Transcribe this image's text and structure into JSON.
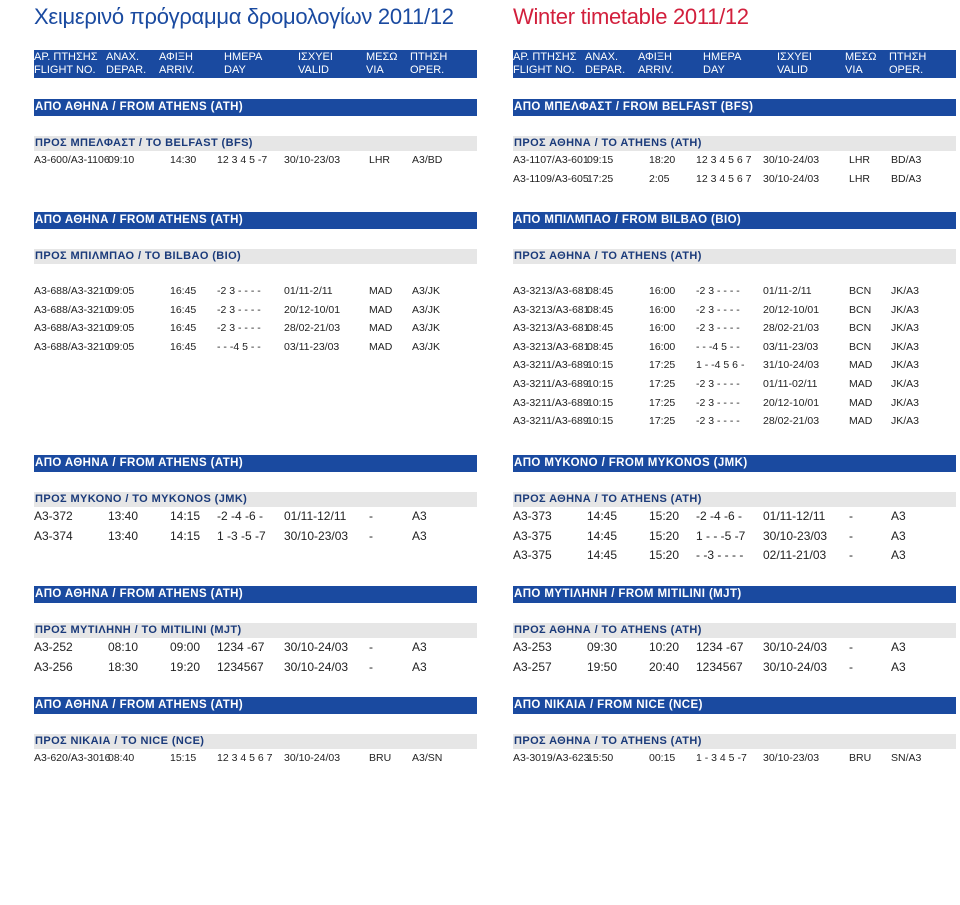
{
  "titles": {
    "greek": "Χειμερινό πρόγραμμα δρομολογίων 2011/12",
    "english": "Winter timetable 2011/12"
  },
  "column_headers": {
    "greek": [
      "ΑΡ. ΠΤΗΣΗΣ",
      "ΑΝΑΧ.",
      "ΑΦΙΞΗ",
      "ΗΜΕΡΑ",
      "ΙΣΧΥΕΙ",
      "ΜΕΣΩ",
      "ΠΤΗΣΗ"
    ],
    "english": [
      "FLIGHT NO.",
      "DEPAR.",
      "ARRIV.",
      "DAY",
      "VALID",
      "VIA",
      "OPER."
    ]
  },
  "left": {
    "s1": {
      "from": "ΑΠΟ ΑΘΗΝΑ / FROM ATHENS (ATH)",
      "to": "ΠΡΟΣ ΜΠΕΛΦΑΣΤ / TO BELFAST (BFS)",
      "rows": [
        [
          "A3-600/A3-1106",
          "09:10",
          "14:30",
          "12 3 4 5 -7",
          "30/10-23/03",
          "LHR",
          "A3/BD"
        ]
      ]
    },
    "s2": {
      "from": "ΑΠΟ ΑΘΗΝΑ / FROM ATHENS (ATH)",
      "to": "ΠΡΟΣ ΜΠΙΛΜΠΑΟ / TO BILBAO (BIO)",
      "rows": [
        [
          "A3-688/A3-3210",
          "09:05",
          "16:45",
          "-2 3 - - - -",
          "01/11-2/11",
          "MAD",
          "A3/JK"
        ],
        [
          "A3-688/A3-3210",
          "09:05",
          "16:45",
          "-2 3 - - - -",
          "20/12-10/01",
          "MAD",
          "A3/JK"
        ],
        [
          "A3-688/A3-3210",
          "09:05",
          "16:45",
          "-2 3 - - - -",
          "28/02-21/03",
          "MAD",
          "A3/JK"
        ],
        [
          "A3-688/A3-3210",
          "09:05",
          "16:45",
          "- - -4 5 - -",
          "03/11-23/03",
          "MAD",
          "A3/JK"
        ]
      ]
    },
    "s3": {
      "from": "ΑΠΟ ΑΘΗΝΑ / FROM ATHENS (ATH)",
      "to": "ΠΡΟΣ ΜΥΚΟΝΟ / TO MYKONOS (JMK)",
      "rows": [
        [
          "A3-372",
          "13:40",
          "14:15",
          "-2 -4 -6 -",
          "01/11-12/11",
          "-",
          "A3"
        ],
        [
          "A3-374",
          "13:40",
          "14:15",
          "1 -3 -5 -7",
          "30/10-23/03",
          "-",
          "A3"
        ]
      ]
    },
    "s4": {
      "from": "ΑΠΟ ΑΘΗΝΑ / FROM ATHENS (ATH)",
      "to": "ΠΡΟΣ ΜΥΤΙΛΗΝΗ / TO MITILINI (MJT)",
      "rows": [
        [
          "A3-252",
          "08:10",
          "09:00",
          "1234 -67",
          "30/10-24/03",
          "-",
          "A3"
        ],
        [
          "A3-256",
          "18:30",
          "19:20",
          "1234567",
          "30/10-24/03",
          "-",
          "A3"
        ]
      ]
    },
    "s5": {
      "from": "ΑΠΟ ΑΘΗΝΑ / FROM ATHENS (ATH)",
      "to": "ΠΡΟΣ ΝΙΚΑΙΑ / TO NICE (NCE)",
      "rows": [
        [
          "A3-620/A3-3016",
          "08:40",
          "15:15",
          "12 3 4 5 6 7",
          "30/10-24/03",
          "BRU",
          "A3/SN"
        ]
      ]
    }
  },
  "right": {
    "s1": {
      "from": "ΑΠΟ ΜΠΕΛΦΑΣΤ / FROM BELFAST (BFS)",
      "to": "ΠΡΟΣ ΑΘΗΝΑ / TO ATHENS (ATH)",
      "rows": [
        [
          "A3-1107/A3-601",
          "09:15",
          "18:20",
          "12 3 4 5 6 7",
          "30/10-24/03",
          "LHR",
          "BD/A3"
        ],
        [
          "A3-1109/A3-605",
          "17:25",
          "2:05",
          "12 3 4 5 6 7",
          "30/10-24/03",
          "LHR",
          "BD/A3"
        ]
      ]
    },
    "s2": {
      "from": "ΑΠΟ ΜΠΙΛΜΠΑΟ / FROM BILBAO (BIO)",
      "to": "ΠΡΟΣ ΑΘΗΝΑ / TO ATHENS (ATH)",
      "rows": [
        [
          "A3-3213/A3-681",
          "08:45",
          "16:00",
          "-2 3 - - - -",
          "01/11-2/11",
          "BCN",
          "JK/A3"
        ],
        [
          "A3-3213/A3-681",
          "08:45",
          "16:00",
          "-2 3 - - - -",
          "20/12-10/01",
          "BCN",
          "JK/A3"
        ],
        [
          "A3-3213/A3-681",
          "08:45",
          "16:00",
          "-2 3 - - - -",
          "28/02-21/03",
          "BCN",
          "JK/A3"
        ],
        [
          "A3-3213/A3-681",
          "08:45",
          "16:00",
          "- - -4 5 - -",
          "03/11-23/03",
          "BCN",
          "JK/A3"
        ],
        [
          "A3-3211/A3-689",
          "10:15",
          "17:25",
          "1 - -4 5 6 -",
          "31/10-24/03",
          "MAD",
          "JK/A3"
        ],
        [
          "A3-3211/A3-689",
          "10:15",
          "17:25",
          "-2 3 - - - -",
          "01/11-02/11",
          "MAD",
          "JK/A3"
        ],
        [
          "A3-3211/A3-689",
          "10:15",
          "17:25",
          "-2 3 - - - -",
          "20/12-10/01",
          "MAD",
          "JK/A3"
        ],
        [
          "A3-3211/A3-689",
          "10:15",
          "17:25",
          "-2 3 - - - -",
          "28/02-21/03",
          "MAD",
          "JK/A3"
        ]
      ]
    },
    "s3": {
      "from": "ΑΠΟ ΜΥΚΟΝΟ / FROM MYKONOS (JMK)",
      "to": "ΠΡΟΣ ΑΘΗΝΑ / TO ATHENS (ATH)",
      "rows": [
        [
          "A3-373",
          "14:45",
          "15:20",
          "-2 -4 -6 -",
          "01/11-12/11",
          "-",
          "A3"
        ],
        [
          "A3-375",
          "14:45",
          "15:20",
          "1 - - -5 -7",
          "30/10-23/03",
          "-",
          "A3"
        ],
        [
          "A3-375",
          "14:45",
          "15:20",
          "- -3 - - - -",
          "02/11-21/03",
          "-",
          "A3"
        ]
      ]
    },
    "s4": {
      "from": "ΑΠΟ ΜΥΤΙΛΗΝΗ / FROM MITILINI (MJT)",
      "to": "ΠΡΟΣ ΑΘΗΝΑ / TO ATHENS (ATH)",
      "rows": [
        [
          "A3-253",
          "09:30",
          "10:20",
          "1234 -67",
          "30/10-24/03",
          "-",
          "A3"
        ],
        [
          "A3-257",
          "19:50",
          "20:40",
          "1234567",
          "30/10-24/03",
          "-",
          "A3"
        ]
      ]
    },
    "s5": {
      "from": "ΑΠΟ ΝΙΚΑΙΑ / FROM NICE (NCE)",
      "to": "ΠΡΟΣ ΑΘΗΝΑ / TO ATHENS (ATH)",
      "rows": [
        [
          "A3-3019/A3-623",
          "15:50",
          "00:15",
          "1 - 3 4 5 -7",
          "30/10-23/03",
          "BRU",
          "SN/A3"
        ]
      ]
    }
  }
}
